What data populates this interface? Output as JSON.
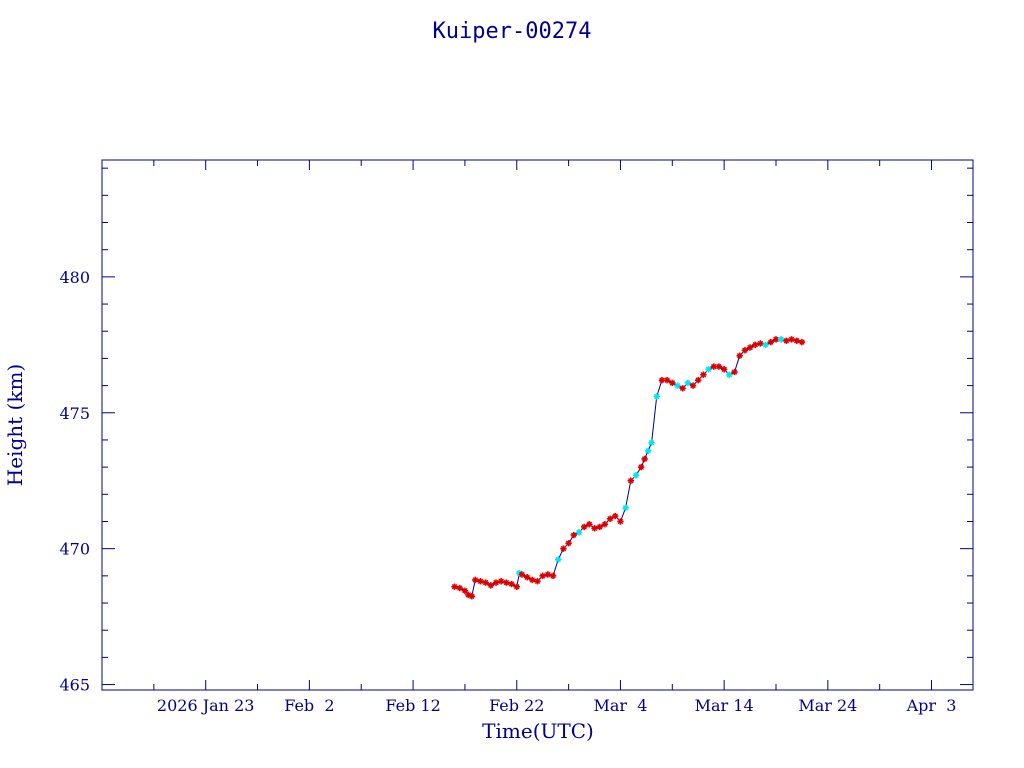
{
  "chart_data": {
    "type": "scatter",
    "title": "Kuiper-00274",
    "xlabel": "Time(UTC)",
    "ylabel": "Height (km)",
    "x_tick_labels": [
      "2026 Jan 23",
      "Feb  2",
      "Feb 12",
      "Feb 22",
      "Mar  4",
      "Mar 14",
      "Mar 24",
      "Apr  3"
    ],
    "x_tick_dates": [
      "2026-01-23",
      "2026-02-02",
      "2026-02-12",
      "2026-02-22",
      "2026-03-04",
      "2026-03-14",
      "2026-03-24",
      "2026-04-03"
    ],
    "xlim": [
      "2026-01-13",
      "2026-04-07"
    ],
    "y_ticks": [
      465,
      470,
      475,
      480
    ],
    "ylim": [
      464.8,
      484.3
    ],
    "grid": false,
    "colors": {
      "axes": "#00008b",
      "line": "#00008b",
      "marker_primary": "#dd0000",
      "marker_secondary": "#00e5ee"
    },
    "series": [
      {
        "x": [
          "2026-02-16T00:00",
          "2026-02-16T12:00",
          "2026-02-17T00:00",
          "2026-02-17T08:00",
          "2026-02-17T16:00",
          "2026-02-18T00:00",
          "2026-02-18T12:00",
          "2026-02-19T00:00",
          "2026-02-19T12:00",
          "2026-02-20T00:00",
          "2026-02-20T12:00",
          "2026-02-21T00:00",
          "2026-02-21T12:00",
          "2026-02-22T00:00",
          "2026-02-22T06:00",
          "2026-02-22T12:00",
          "2026-02-23T00:00",
          "2026-02-23T12:00",
          "2026-02-24T00:00",
          "2026-02-24T12:00",
          "2026-02-25T00:00",
          "2026-02-25T12:00",
          "2026-02-26T00:00",
          "2026-02-26T12:00",
          "2026-02-27T00:00",
          "2026-02-27T12:00",
          "2026-02-28T00:00",
          "2026-02-28T12:00",
          "2026-03-01T00:00",
          "2026-03-01T12:00",
          "2026-03-02T00:00",
          "2026-03-02T12:00",
          "2026-03-03T00:00",
          "2026-03-03T12:00",
          "2026-03-04T00:00",
          "2026-03-04T12:00",
          "2026-03-05T00:00",
          "2026-03-05T12:00",
          "2026-03-06T00:00",
          "2026-03-06T08:00",
          "2026-03-06T16:00",
          "2026-03-07T00:00",
          "2026-03-07T12:00",
          "2026-03-08T00:00",
          "2026-03-08T12:00",
          "2026-03-09T00:00",
          "2026-03-09T12:00",
          "2026-03-10T00:00",
          "2026-03-10T12:00",
          "2026-03-11T00:00",
          "2026-03-11T12:00",
          "2026-03-12T00:00",
          "2026-03-12T12:00",
          "2026-03-13T00:00",
          "2026-03-13T12:00",
          "2026-03-14T00:00",
          "2026-03-14T12:00",
          "2026-03-15T00:00",
          "2026-03-15T12:00",
          "2026-03-16T00:00",
          "2026-03-16T12:00",
          "2026-03-17T00:00",
          "2026-03-17T12:00",
          "2026-03-18T00:00",
          "2026-03-18T12:00",
          "2026-03-19T00:00",
          "2026-03-19T12:00",
          "2026-03-20T00:00",
          "2026-03-20T12:00",
          "2026-03-21T00:00",
          "2026-03-21T12:00"
        ],
        "y": [
          468.6,
          468.55,
          468.45,
          468.3,
          468.25,
          468.85,
          468.8,
          468.75,
          468.65,
          468.75,
          468.8,
          468.75,
          468.7,
          468.6,
          469.1,
          469.05,
          468.95,
          468.85,
          468.8,
          469.0,
          469.05,
          469.0,
          469.6,
          470.0,
          470.2,
          470.5,
          470.6,
          470.8,
          470.9,
          470.75,
          470.8,
          470.9,
          471.1,
          471.2,
          471.0,
          471.5,
          472.5,
          472.7,
          473.0,
          473.3,
          473.6,
          473.9,
          475.6,
          476.2,
          476.2,
          476.1,
          476.0,
          475.9,
          476.1,
          476.0,
          476.2,
          476.4,
          476.6,
          476.7,
          476.7,
          476.6,
          476.4,
          476.5,
          477.1,
          477.3,
          477.4,
          477.5,
          477.55,
          477.5,
          477.6,
          477.7,
          477.7,
          477.65,
          477.7,
          477.65,
          477.6
        ],
        "marker": [
          "r",
          "r",
          "r",
          "r",
          "r",
          "r",
          "r",
          "r",
          "r",
          "r",
          "r",
          "r",
          "r",
          "r",
          "c",
          "r",
          "r",
          "r",
          "r",
          "r",
          "r",
          "r",
          "c",
          "r",
          "r",
          "r",
          "c",
          "r",
          "r",
          "r",
          "r",
          "r",
          "r",
          "r",
          "r",
          "c",
          "r",
          "c",
          "r",
          "r",
          "c",
          "c",
          "c",
          "r",
          "r",
          "r",
          "c",
          "r",
          "c",
          "r",
          "r",
          "r",
          "c",
          "r",
          "r",
          "r",
          "c",
          "r",
          "r",
          "r",
          "r",
          "r",
          "r",
          "c",
          "r",
          "r",
          "c",
          "r",
          "r",
          "r",
          "r"
        ]
      }
    ]
  }
}
